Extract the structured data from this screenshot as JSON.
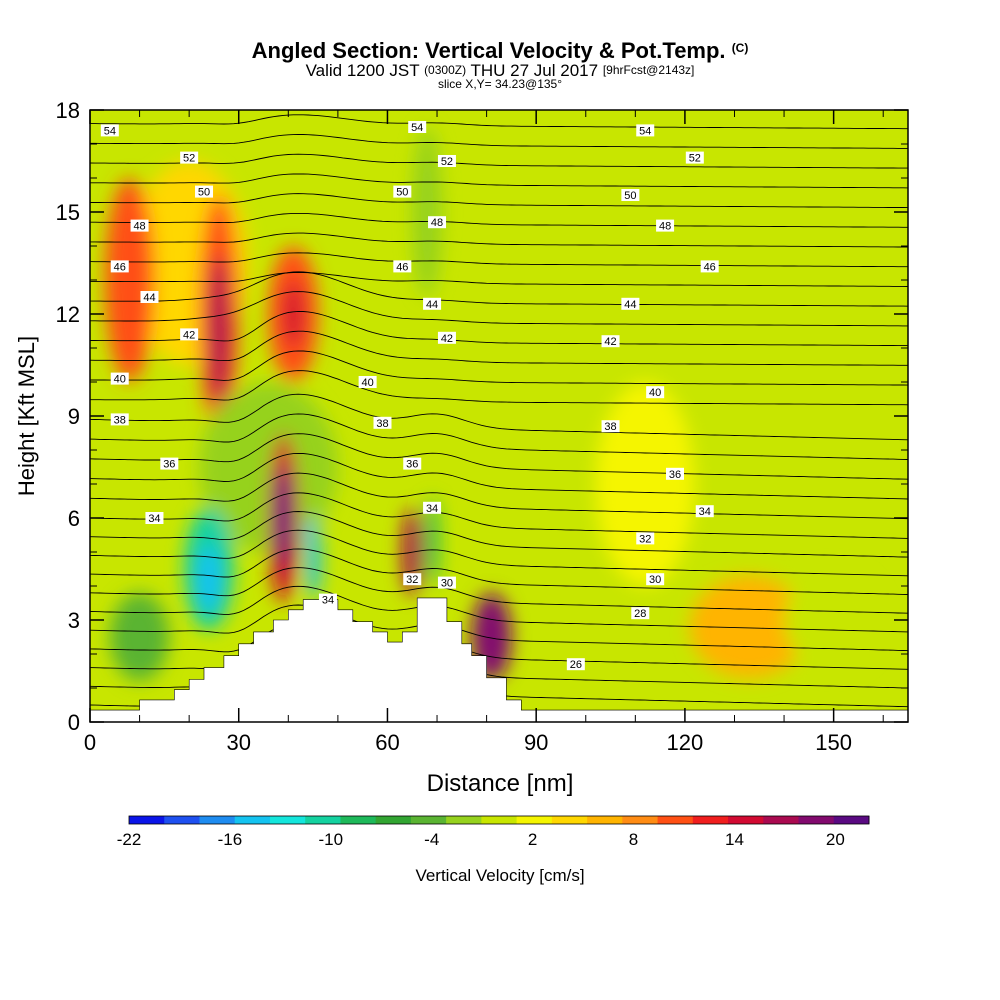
{
  "header": {
    "title_main": "Angled Section: Vertical Velocity & Pot.Temp.",
    "title_unit": "(C)",
    "valid_1": "Valid 1200 JST",
    "valid_2": "(0300Z)",
    "valid_3": "THU 27 Jul 2017",
    "valid_4": "[9hrFcst@2143z]",
    "slice": "slice X,Y= 34.23@135°"
  },
  "colors": {
    "background": "#ffffff",
    "terrain": "#ffffff",
    "contour": "#000000",
    "colorbar": [
      "#0a14e8",
      "#1e50f0",
      "#1e8cf0",
      "#14c3f0",
      "#14e6dc",
      "#14d2a0",
      "#1eb95a",
      "#32a532",
      "#5ab432",
      "#96d21e",
      "#c8e600",
      "#f5f500",
      "#ffd700",
      "#ffb400",
      "#ff8c14",
      "#ff5014",
      "#f01e1e",
      "#d20a32",
      "#aa0a50",
      "#820a6e",
      "#5a0a82"
    ]
  },
  "chart_data": {
    "type": "heatmap",
    "xlabel": "Distance [nm]",
    "ylabel": "Height [Kft MSL]",
    "xlim": [
      0,
      165
    ],
    "ylim": [
      0,
      18
    ],
    "xticks": [
      0,
      30,
      60,
      90,
      120,
      150
    ],
    "yticks": [
      0,
      3,
      6,
      9,
      12,
      15,
      18
    ],
    "colorbar": {
      "label": "Vertical Velocity [cm/s]",
      "min": -22,
      "max": 22,
      "step": 2,
      "tick_values": [
        -22,
        -16,
        -10,
        -4,
        2,
        8,
        14,
        20
      ],
      "tick_labels": [
        "-22",
        "-16",
        "-10",
        "-4",
        "2",
        "8",
        "14",
        "20"
      ]
    },
    "terrain": [
      [
        0,
        0.35
      ],
      [
        10,
        0.35
      ],
      [
        10,
        0.65
      ],
      [
        17,
        0.65
      ],
      [
        17,
        0.95
      ],
      [
        20,
        0.95
      ],
      [
        20,
        1.25
      ],
      [
        23,
        1.25
      ],
      [
        23,
        1.6
      ],
      [
        27,
        1.6
      ],
      [
        27,
        1.95
      ],
      [
        30,
        1.95
      ],
      [
        30,
        2.3
      ],
      [
        33,
        2.3
      ],
      [
        33,
        2.65
      ],
      [
        37,
        2.65
      ],
      [
        37,
        3.0
      ],
      [
        40,
        3.0
      ],
      [
        40,
        3.3
      ],
      [
        43,
        3.3
      ],
      [
        43,
        3.6
      ],
      [
        50,
        3.6
      ],
      [
        50,
        3.3
      ],
      [
        53,
        3.3
      ],
      [
        53,
        2.95
      ],
      [
        57,
        2.95
      ],
      [
        57,
        2.65
      ],
      [
        60,
        2.65
      ],
      [
        60,
        2.35
      ],
      [
        63,
        2.35
      ],
      [
        63,
        2.65
      ],
      [
        66,
        2.65
      ],
      [
        66,
        3.65
      ],
      [
        72,
        3.65
      ],
      [
        72,
        2.95
      ],
      [
        75,
        2.95
      ],
      [
        75,
        2.3
      ],
      [
        77,
        2.3
      ],
      [
        77,
        1.95
      ],
      [
        80,
        1.95
      ],
      [
        80,
        1.3
      ],
      [
        84,
        1.3
      ],
      [
        84,
        0.65
      ],
      [
        87,
        0.65
      ],
      [
        87,
        0.35
      ],
      [
        165,
        0.35
      ]
    ],
    "velocity_cells": [
      {
        "x": 20,
        "y": 13.5,
        "rx": 12,
        "ry": 3.0,
        "value": 3
      },
      {
        "x": 8,
        "y": 13,
        "rx": 5,
        "ry": 3.0,
        "value": 8
      },
      {
        "x": 26,
        "y": 12,
        "rx": 4,
        "ry": 3.5,
        "value": 8
      },
      {
        "x": 26,
        "y": 11.5,
        "rx": 2,
        "ry": 2.2,
        "value": 14
      },
      {
        "x": 41,
        "y": 12,
        "rx": 5,
        "ry": 2.0,
        "value": 8
      },
      {
        "x": 41,
        "y": 12,
        "rx": 2,
        "ry": 1.0,
        "value": 12
      },
      {
        "x": 36,
        "y": 7.5,
        "rx": 14,
        "ry": 2.5,
        "value": -4
      },
      {
        "x": 24,
        "y": 4.5,
        "rx": 5,
        "ry": 1.8,
        "value": -12
      },
      {
        "x": 24,
        "y": 4.2,
        "rx": 2.5,
        "ry": 1.0,
        "value": -16
      },
      {
        "x": 39,
        "y": 6,
        "rx": 3,
        "ry": 2.5,
        "value": 12
      },
      {
        "x": 39,
        "y": 6,
        "rx": 1.5,
        "ry": 1.5,
        "value": 18
      },
      {
        "x": 45,
        "y": 4.8,
        "rx": 1.5,
        "ry": 1.2,
        "value": -16
      },
      {
        "x": 65,
        "y": 5,
        "rx": 2,
        "ry": 1.3,
        "value": 14
      },
      {
        "x": 69,
        "y": 5.3,
        "rx": 1.3,
        "ry": 1.3,
        "value": -10
      },
      {
        "x": 81,
        "y": 2.5,
        "rx": 4,
        "ry": 1.3,
        "value": 16
      },
      {
        "x": 10,
        "y": 2.5,
        "rx": 6,
        "ry": 1.3,
        "value": -6
      },
      {
        "x": 133,
        "y": 2.8,
        "rx": 12,
        "ry": 1.5,
        "value": 5
      },
      {
        "x": 150,
        "y": 3,
        "rx": 10,
        "ry": 1.5,
        "value": -2
      },
      {
        "x": 112,
        "y": 7,
        "rx": 10,
        "ry": 3.0,
        "value": 1
      },
      {
        "x": 68,
        "y": 15,
        "rx": 3,
        "ry": 2.5,
        "value": -4
      }
    ],
    "isentropes": [
      {
        "value": 54,
        "label": "54",
        "label_positions": [
          [
            4,
            17.4
          ],
          [
            66,
            17.5
          ],
          [
            112,
            17.4
          ]
        ]
      },
      {
        "value": 52,
        "label": "52",
        "label_positions": [
          [
            20,
            16.6
          ],
          [
            72,
            16.5
          ],
          [
            122,
            16.6
          ]
        ]
      },
      {
        "value": 50,
        "label": "50",
        "label_positions": [
          [
            23,
            15.6
          ],
          [
            63,
            15.6
          ],
          [
            109,
            15.5
          ]
        ]
      },
      {
        "value": 48,
        "label": "48",
        "label_positions": [
          [
            10,
            14.6
          ],
          [
            70,
            14.7
          ],
          [
            116,
            14.6
          ]
        ]
      },
      {
        "value": 46,
        "label": "46",
        "label_positions": [
          [
            6,
            13.4
          ],
          [
            63,
            13.4
          ],
          [
            125,
            13.4
          ]
        ]
      },
      {
        "value": 44,
        "label": "44",
        "label_positions": [
          [
            12,
            12.5
          ],
          [
            69,
            12.3
          ],
          [
            109,
            12.3
          ]
        ]
      },
      {
        "value": 42,
        "label": "42",
        "label_positions": [
          [
            20,
            11.4
          ],
          [
            72,
            11.3
          ],
          [
            105,
            11.2
          ]
        ]
      },
      {
        "value": 40,
        "label": "40",
        "label_positions": [
          [
            6,
            10.1
          ],
          [
            56,
            10.0
          ],
          [
            114,
            9.7
          ]
        ]
      },
      {
        "value": 38,
        "label": "38",
        "label_positions": [
          [
            6,
            8.9
          ],
          [
            59,
            8.8
          ],
          [
            105,
            8.7
          ]
        ]
      },
      {
        "value": 36,
        "label": "36",
        "label_positions": [
          [
            16,
            7.6
          ],
          [
            65,
            7.6
          ],
          [
            118,
            7.3
          ]
        ]
      },
      {
        "value": 34,
        "label": "34",
        "label_positions": [
          [
            13,
            6.0
          ],
          [
            69,
            6.3
          ],
          [
            124,
            6.2
          ],
          [
            48,
            3.6
          ]
        ]
      },
      {
        "value": 32,
        "label": "32",
        "label_positions": [
          [
            65,
            4.2
          ],
          [
            112,
            5.4
          ]
        ]
      },
      {
        "value": 30,
        "label": "30",
        "label_positions": [
          [
            72,
            4.1
          ],
          [
            114,
            4.2
          ]
        ]
      },
      {
        "value": 28,
        "label": "28",
        "label_positions": [
          [
            111,
            3.2
          ]
        ]
      },
      {
        "value": 26,
        "label": "26",
        "label_positions": [
          [
            98,
            1.7
          ]
        ]
      }
    ]
  }
}
